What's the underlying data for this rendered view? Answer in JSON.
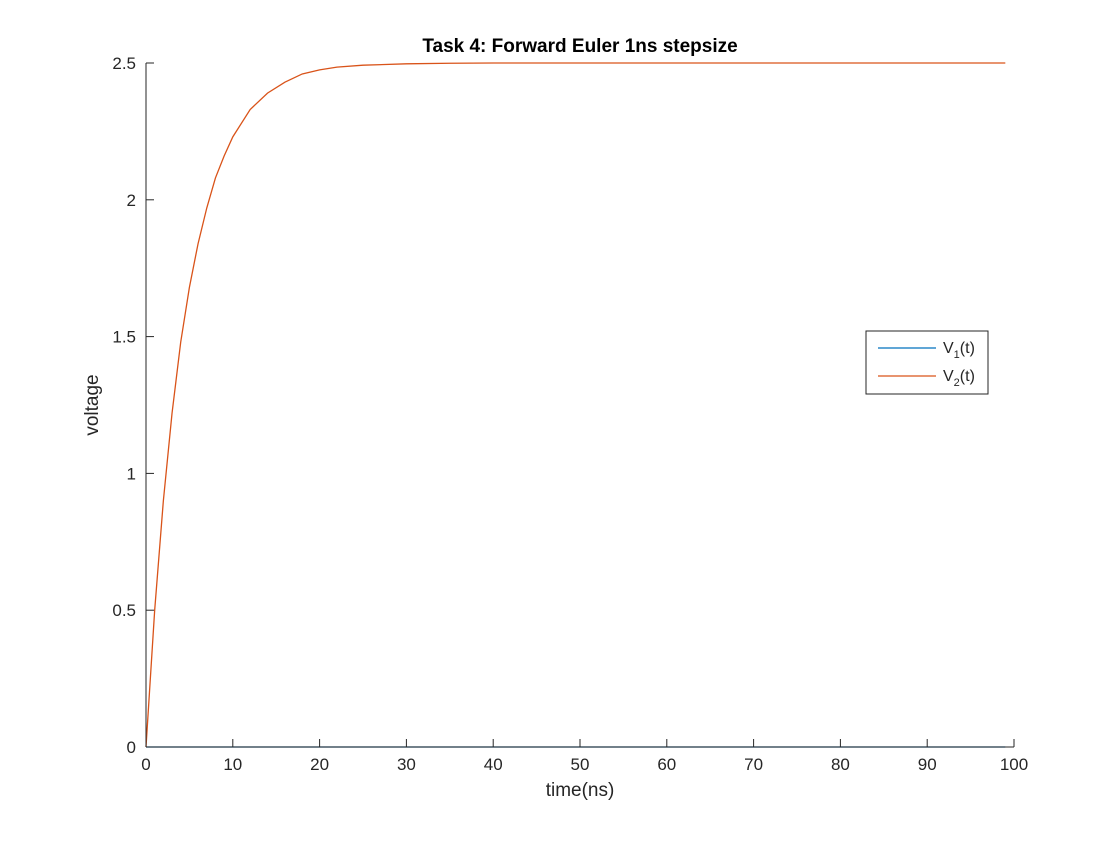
{
  "chart_data": {
    "type": "line",
    "title": "Task 4: Forward Euler 1ns stepsize",
    "xlabel": "time(ns)",
    "ylabel": "voltage",
    "xlim": [
      0,
      100
    ],
    "ylim": [
      0,
      2.5
    ],
    "xticks": [
      0,
      10,
      20,
      30,
      40,
      50,
      60,
      70,
      80,
      90,
      100
    ],
    "yticks": [
      0,
      0.5,
      1,
      1.5,
      2,
      2.5
    ],
    "xtick_labels": [
      "0",
      "10",
      "20",
      "30",
      "40",
      "50",
      "60",
      "70",
      "80",
      "90",
      "100"
    ],
    "ytick_labels": [
      "0",
      "0.5",
      "1",
      "1.5",
      "2",
      "2.5"
    ],
    "grid": false,
    "legend_position": "right",
    "series": [
      {
        "name": "V1(t)",
        "label_main": "V",
        "label_sub": "1",
        "label_tail": "(t)",
        "color": "#0072BD",
        "x": [
          0,
          2,
          10,
          20,
          30,
          40,
          50,
          60,
          70,
          80,
          90,
          99
        ],
        "y": [
          0,
          0,
          0,
          0,
          0,
          0,
          0,
          0,
          0,
          0,
          0,
          0
        ]
      },
      {
        "name": "V2(t)",
        "label_main": "V",
        "label_sub": "2",
        "label_tail": "(t)",
        "color": "#D95319",
        "x": [
          0,
          1,
          2,
          3,
          4,
          5,
          6,
          7,
          8,
          9,
          10,
          12,
          14,
          16,
          18,
          20,
          22,
          25,
          30,
          35,
          40,
          50,
          60,
          70,
          80,
          90,
          99
        ],
        "y": [
          0,
          0.5,
          0.9,
          1.22,
          1.48,
          1.68,
          1.84,
          1.97,
          2.08,
          2.16,
          2.23,
          2.33,
          2.39,
          2.43,
          2.46,
          2.475,
          2.485,
          2.492,
          2.497,
          2.499,
          2.5,
          2.5,
          2.5,
          2.5,
          2.5,
          2.5,
          2.5
        ]
      }
    ]
  }
}
